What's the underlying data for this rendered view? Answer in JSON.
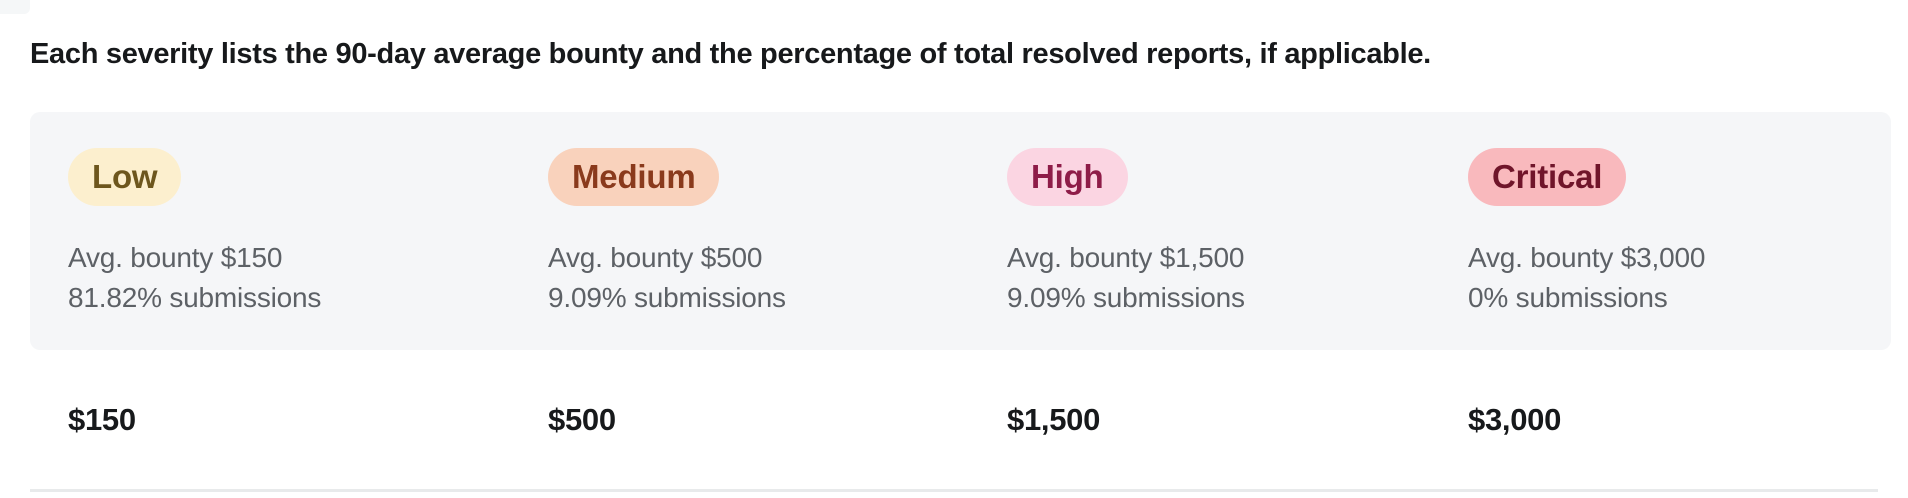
{
  "header": {
    "description": "Each severity lists the 90-day average bounty and the percentage of total resolved reports, if applicable."
  },
  "severity_summary": {
    "items": [
      {
        "label": "Low",
        "avg_bounty": "Avg. bounty $150",
        "submissions": "81.82% submissions",
        "badge_bg": "#fcefce",
        "badge_fg": "#6d561d"
      },
      {
        "label": "Medium",
        "avg_bounty": "Avg. bounty $500",
        "submissions": "9.09% submissions",
        "badge_bg": "#f9d2bc",
        "badge_fg": "#8a3a1c"
      },
      {
        "label": "High",
        "avg_bounty": "Avg. bounty $1,500",
        "submissions": "9.09% submissions",
        "badge_bg": "#fbd5e2",
        "badge_fg": "#8e1c48"
      },
      {
        "label": "Critical",
        "avg_bounty": "Avg. bounty $3,000",
        "submissions": "0% submissions",
        "badge_bg": "#f9b9bd",
        "badge_fg": "#70152a"
      }
    ]
  },
  "bounty_row": {
    "amounts": [
      "$150",
      "$500",
      "$1,500",
      "$3,000"
    ]
  },
  "colors": {
    "panel_bg": "#f5f6f8",
    "body_text": "#5d6166",
    "heading_text": "#17191b",
    "divider": "#e8eaeb"
  }
}
